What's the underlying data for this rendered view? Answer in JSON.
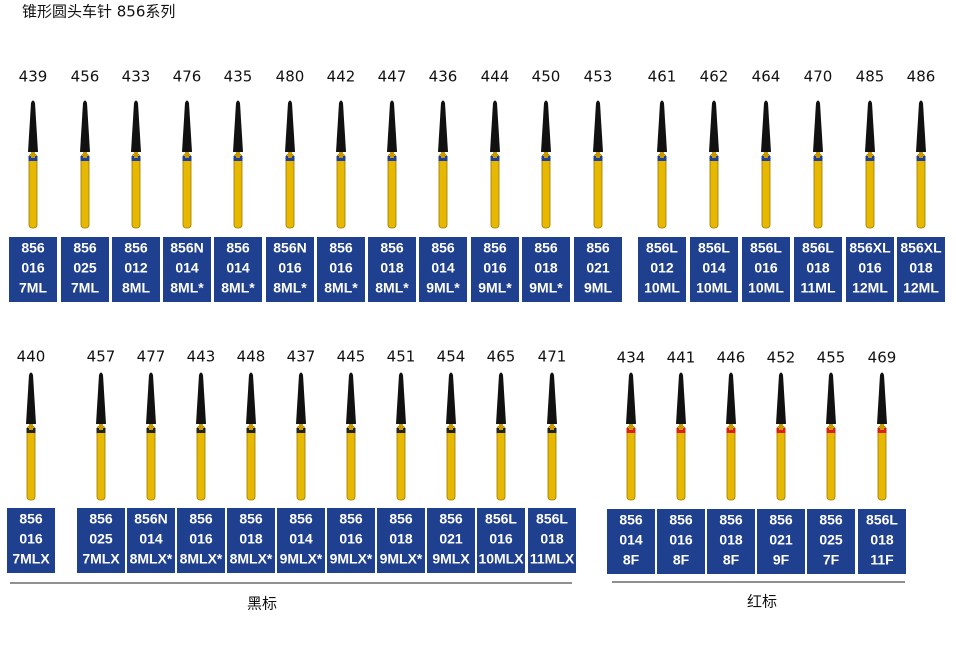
{
  "title": "锥形圆头车针 856系列",
  "row1": {
    "items": [
      {
        "number": "439",
        "code": [
          "856",
          "016",
          "7ML"
        ]
      },
      {
        "number": "456",
        "code": [
          "856",
          "025",
          "7ML"
        ]
      },
      {
        "number": "433",
        "code": [
          "856",
          "012",
          "8ML"
        ]
      },
      {
        "number": "476",
        "code": [
          "856N",
          "014",
          "8ML*"
        ]
      },
      {
        "number": "435",
        "code": [
          "856",
          "014",
          "8ML*"
        ]
      },
      {
        "number": "480",
        "code": [
          "856N",
          "016",
          "8ML*"
        ]
      },
      {
        "number": "442",
        "code": [
          "856",
          "016",
          "8ML*"
        ]
      },
      {
        "number": "447",
        "code": [
          "856",
          "018",
          "8ML*"
        ]
      },
      {
        "number": "436",
        "code": [
          "856",
          "014",
          "9ML*"
        ]
      },
      {
        "number": "444",
        "code": [
          "856",
          "016",
          "9ML*"
        ]
      },
      {
        "number": "450",
        "code": [
          "856",
          "018",
          "9ML*"
        ]
      },
      {
        "number": "453",
        "code": [
          "856",
          "021",
          "9ML"
        ]
      },
      {
        "number": "461",
        "code": [
          "856L",
          "012",
          "10ML"
        ]
      },
      {
        "number": "462",
        "code": [
          "856L",
          "014",
          "10ML"
        ]
      },
      {
        "number": "464",
        "code": [
          "856L",
          "016",
          "10ML"
        ]
      },
      {
        "number": "470",
        "code": [
          "856L",
          "018",
          "11ML"
        ]
      },
      {
        "number": "485",
        "code": [
          "856XL",
          "016",
          "12ML"
        ]
      },
      {
        "number": "486",
        "code": [
          "856XL",
          "018",
          "12ML"
        ]
      }
    ]
  },
  "black": {
    "label": "黑标",
    "items": [
      {
        "number": "440",
        "code": [
          "856",
          "016",
          "7MLX"
        ]
      },
      {
        "number": "457",
        "code": [
          "856",
          "025",
          "7MLX"
        ]
      },
      {
        "number": "477",
        "code": [
          "856N",
          "014",
          "8MLX*"
        ]
      },
      {
        "number": "443",
        "code": [
          "856",
          "016",
          "8MLX*"
        ]
      },
      {
        "number": "448",
        "code": [
          "856",
          "018",
          "8MLX*"
        ]
      },
      {
        "number": "437",
        "code": [
          "856",
          "014",
          "9MLX*"
        ]
      },
      {
        "number": "445",
        "code": [
          "856",
          "016",
          "9MLX*"
        ]
      },
      {
        "number": "451",
        "code": [
          "856",
          "018",
          "9MLX*"
        ]
      },
      {
        "number": "454",
        "code": [
          "856",
          "021",
          "9MLX"
        ]
      },
      {
        "number": "465",
        "code": [
          "856L",
          "016",
          "10MLX"
        ]
      },
      {
        "number": "471",
        "code": [
          "856L",
          "018",
          "11MLX"
        ]
      }
    ]
  },
  "red": {
    "label": "红标",
    "items": [
      {
        "number": "434",
        "code": [
          "856",
          "014",
          "8F"
        ]
      },
      {
        "number": "441",
        "code": [
          "856",
          "016",
          "8F"
        ]
      },
      {
        "number": "446",
        "code": [
          "856",
          "018",
          "8F"
        ]
      },
      {
        "number": "452",
        "code": [
          "856",
          "021",
          "9F"
        ]
      },
      {
        "number": "455",
        "code": [
          "856",
          "025",
          "7F"
        ]
      },
      {
        "number": "469",
        "code": [
          "856L",
          "018",
          "11F"
        ]
      }
    ]
  }
}
